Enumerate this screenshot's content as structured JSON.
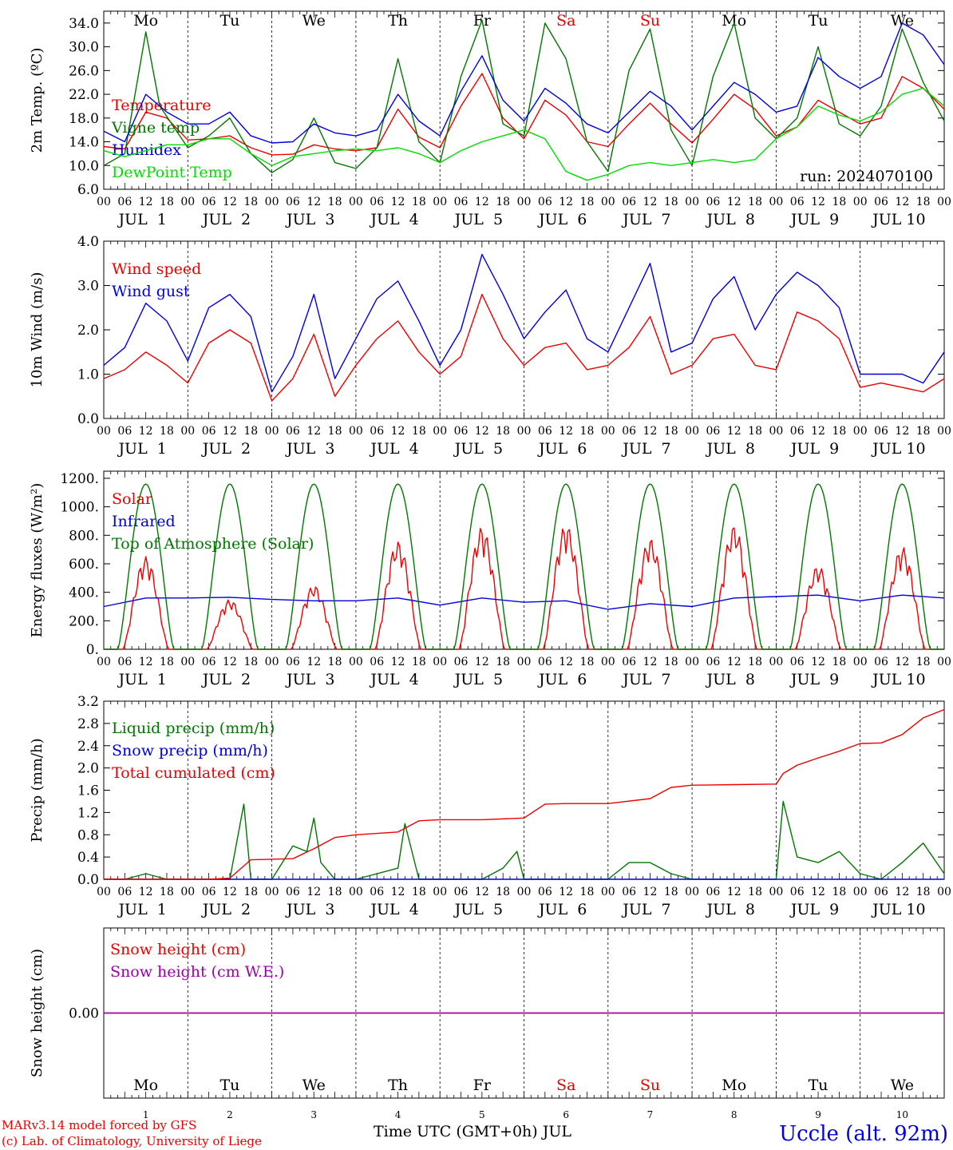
{
  "run_label": "run: 2024070100",
  "footer": {
    "credit_line1": "MARv3.14 model forced by GFS",
    "credit_line2": "(c) Lab. of Climatology, University of Liege",
    "xlabel": "Time UTC (GMT+0h) JUL",
    "station": "Uccle (alt. 92m)"
  },
  "days": [
    {
      "abbr": "Mo",
      "date": "JUL  1",
      "num": "1",
      "weekend": false
    },
    {
      "abbr": "Tu",
      "date": "JUL  2",
      "num": "2",
      "weekend": false
    },
    {
      "abbr": "We",
      "date": "JUL  3",
      "num": "3",
      "weekend": false
    },
    {
      "abbr": "Th",
      "date": "JUL  4",
      "num": "4",
      "weekend": false
    },
    {
      "abbr": "Fr",
      "date": "JUL  5",
      "num": "5",
      "weekend": false
    },
    {
      "abbr": "Sa",
      "date": "JUL  6",
      "num": "6",
      "weekend": true
    },
    {
      "abbr": "Su",
      "date": "JUL  7",
      "num": "7",
      "weekend": true
    },
    {
      "abbr": "Mo",
      "date": "JUL  8",
      "num": "8",
      "weekend": false
    },
    {
      "abbr": "Tu",
      "date": "JUL  9",
      "num": "9",
      "weekend": false
    },
    {
      "abbr": "We",
      "date": "JUL 10",
      "num": "10",
      "weekend": false
    }
  ],
  "hour_ticks": [
    "00",
    "06",
    "12",
    "18"
  ],
  "last_hour_tick": "00",
  "colors": {
    "red": "#ee0000",
    "blue": "#0000dd",
    "green": "#007700",
    "lightgreen": "#00dd00",
    "purple": "#9900aa",
    "weekend": "#ee0000",
    "text": "#000000"
  },
  "chart_data": [
    {
      "id": "temp",
      "type": "line",
      "ylabel": "2m Temp. (ºC)",
      "ylim": [
        6,
        36
      ],
      "yticks": [
        "6.0",
        "10.0",
        "14.0",
        "18.0",
        "22.0",
        "26.0",
        "30.0",
        "34.0"
      ],
      "ytick_values": [
        6,
        10,
        14,
        18,
        22,
        26,
        30,
        34
      ],
      "x_unit": "hours since Jul 1 00 UTC",
      "series": [
        {
          "name": "Temperature",
          "color": "red",
          "x": [
            0,
            6,
            12,
            18,
            24,
            30,
            36,
            42,
            48,
            54,
            60,
            66,
            72,
            78,
            84,
            90,
            96,
            102,
            108,
            114,
            120,
            126,
            132,
            138,
            144,
            150,
            156,
            162,
            168,
            174,
            180,
            186,
            192,
            198,
            204,
            210,
            216,
            222,
            228,
            234,
            240
          ],
          "y": [
            13.2,
            12.8,
            19.0,
            18.0,
            14.3,
            14.5,
            15.0,
            13.0,
            11.8,
            11.9,
            13.5,
            12.8,
            12.5,
            13.0,
            19.5,
            14.8,
            13.0,
            20.0,
            25.5,
            18.0,
            14.5,
            21.0,
            18.5,
            14.0,
            13.2,
            17.0,
            20.5,
            17.0,
            13.8,
            17.8,
            22.0,
            19.5,
            15.0,
            16.5,
            21.0,
            19.0,
            17.0,
            18.0,
            25.0,
            23.0,
            19.5
          ]
        },
        {
          "name": "Vigne temp",
          "color": "green",
          "x": [
            0,
            6,
            12,
            16,
            24,
            30,
            36,
            42,
            48,
            54,
            60,
            66,
            72,
            78,
            84,
            90,
            96,
            102,
            108,
            114,
            120,
            126,
            132,
            138,
            144,
            150,
            156,
            162,
            168,
            174,
            180,
            186,
            192,
            198,
            204,
            210,
            216,
            222,
            228,
            234,
            240
          ],
          "y": [
            10.0,
            12.0,
            32.5,
            20.0,
            13.0,
            15.0,
            18.0,
            12.0,
            8.8,
            11.0,
            18.0,
            10.5,
            9.5,
            13.0,
            28.0,
            14.0,
            10.5,
            25.0,
            34.5,
            17.0,
            15.0,
            34.0,
            28.0,
            14.0,
            9.0,
            26.0,
            33.0,
            16.0,
            10.0,
            25.0,
            34.0,
            18.0,
            14.5,
            18.0,
            30.0,
            17.0,
            15.0,
            20.0,
            33.0,
            24.0,
            17.5
          ]
        },
        {
          "name": "Humidex",
          "color": "blue",
          "x": [
            0,
            6,
            12,
            18,
            24,
            30,
            36,
            42,
            48,
            54,
            60,
            66,
            72,
            78,
            84,
            90,
            96,
            102,
            108,
            114,
            120,
            126,
            132,
            138,
            144,
            150,
            156,
            162,
            168,
            174,
            180,
            186,
            192,
            198,
            204,
            210,
            216,
            222,
            228,
            234,
            240
          ],
          "y": [
            15.8,
            14.0,
            22.0,
            19.0,
            17.0,
            17.0,
            19.0,
            15.0,
            13.8,
            14.0,
            17.0,
            15.5,
            15.0,
            16.0,
            22.0,
            17.5,
            15.0,
            22.5,
            28.5,
            21.0,
            17.5,
            23.0,
            20.5,
            17.0,
            15.5,
            19.0,
            22.5,
            20.0,
            16.0,
            20.0,
            24.0,
            22.0,
            19.0,
            20.0,
            28.2,
            25.0,
            23.0,
            25.0,
            34.0,
            32.0,
            27.0
          ]
        },
        {
          "name": "DewPoint Temp",
          "color": "lightgreen",
          "x": [
            0,
            6,
            12,
            18,
            24,
            30,
            36,
            42,
            48,
            54,
            60,
            66,
            72,
            78,
            84,
            90,
            96,
            102,
            108,
            114,
            120,
            126,
            132,
            138,
            144,
            150,
            156,
            162,
            168,
            174,
            180,
            186,
            192,
            198,
            204,
            210,
            216,
            222,
            228,
            234,
            240
          ],
          "y": [
            12.5,
            11.5,
            12.5,
            13.5,
            13.5,
            14.5,
            14.5,
            12.0,
            10.0,
            11.5,
            12.0,
            12.5,
            12.8,
            12.5,
            13.0,
            12.0,
            10.5,
            12.5,
            14.0,
            15.0,
            16.0,
            14.5,
            9.0,
            7.5,
            8.5,
            10.0,
            10.5,
            10.0,
            10.5,
            11.0,
            10.5,
            11.0,
            14.5,
            16.5,
            20.0,
            18.5,
            17.5,
            19.0,
            22.0,
            23.0,
            20.0
          ]
        }
      ]
    },
    {
      "id": "wind",
      "type": "line",
      "ylabel": "10m Wind (m/s)",
      "ylim": [
        0,
        4
      ],
      "yticks": [
        "0.0",
        "1.0",
        "2.0",
        "3.0",
        "4.0"
      ],
      "ytick_values": [
        0,
        1,
        2,
        3,
        4
      ],
      "x_unit": "hours since Jul 1 00 UTC",
      "series": [
        {
          "name": "Wind speed",
          "color": "red",
          "x": [
            0,
            6,
            12,
            18,
            24,
            30,
            36,
            42,
            48,
            54,
            60,
            66,
            72,
            78,
            84,
            90,
            96,
            102,
            108,
            114,
            120,
            126,
            132,
            138,
            144,
            150,
            156,
            162,
            168,
            174,
            180,
            186,
            192,
            198,
            204,
            210,
            216,
            222,
            228,
            234,
            240
          ],
          "y": [
            0.9,
            1.1,
            1.5,
            1.2,
            0.8,
            1.7,
            2.0,
            1.7,
            0.4,
            0.9,
            1.9,
            0.5,
            1.2,
            1.8,
            2.2,
            1.5,
            1.0,
            1.4,
            2.8,
            1.8,
            1.2,
            1.6,
            1.7,
            1.1,
            1.2,
            1.6,
            2.3,
            1.0,
            1.2,
            1.8,
            1.9,
            1.2,
            1.1,
            2.4,
            2.2,
            1.8,
            0.7,
            0.8,
            0.7,
            0.6,
            0.9
          ]
        },
        {
          "name": "Wind gust",
          "color": "blue",
          "x": [
            0,
            6,
            12,
            18,
            24,
            30,
            36,
            42,
            48,
            54,
            60,
            66,
            72,
            78,
            84,
            90,
            96,
            102,
            108,
            114,
            120,
            126,
            132,
            138,
            144,
            150,
            156,
            162,
            168,
            174,
            180,
            186,
            192,
            198,
            204,
            210,
            216,
            222,
            228,
            234,
            240
          ],
          "y": [
            1.2,
            1.6,
            2.6,
            2.2,
            1.3,
            2.5,
            2.8,
            2.3,
            0.6,
            1.4,
            2.8,
            0.9,
            1.8,
            2.7,
            3.1,
            2.2,
            1.2,
            2.0,
            3.7,
            2.8,
            1.8,
            2.4,
            2.9,
            1.8,
            1.5,
            2.5,
            3.5,
            1.5,
            1.7,
            2.7,
            3.2,
            2.0,
            2.8,
            3.3,
            3.0,
            2.5,
            1.0,
            1.0,
            1.0,
            0.8,
            1.5
          ]
        }
      ]
    },
    {
      "id": "energy",
      "type": "line",
      "ylabel": "Energy fluxes (W/m²)",
      "ylim": [
        0,
        1250
      ],
      "yticks": [
        "0.",
        "200.",
        "400.",
        "600.",
        "800.",
        "1000.",
        "1200."
      ],
      "ytick_values": [
        0,
        200,
        400,
        600,
        800,
        1000,
        1200
      ],
      "x_unit": "hours since Jul 1 00 UTC",
      "series": [
        {
          "name": "Solar",
          "color": "red",
          "daily_peak_hour": 12,
          "daily_peak": [
            650,
            350,
            450,
            760,
            860,
            880,
            780,
            870,
            590,
            720
          ]
        },
        {
          "name": "Infrared",
          "color": "blue",
          "x": [
            0,
            12,
            24,
            36,
            48,
            60,
            72,
            84,
            96,
            108,
            120,
            132,
            144,
            156,
            168,
            180,
            192,
            204,
            216,
            228,
            240
          ],
          "y": [
            300,
            360,
            360,
            365,
            350,
            340,
            340,
            360,
            310,
            360,
            330,
            340,
            280,
            320,
            300,
            360,
            370,
            380,
            340,
            380,
            360
          ]
        },
        {
          "name": "Top of Atmosphere (Solar)",
          "color": "green",
          "daily_peak_hour": 12,
          "daily_peak": [
            1160,
            1160,
            1160,
            1160,
            1160,
            1160,
            1160,
            1160,
            1160,
            1160
          ]
        }
      ]
    },
    {
      "id": "precip",
      "type": "line",
      "ylabel": "Precip (mm/h)",
      "ylim": [
        0,
        3.2
      ],
      "yticks": [
        "0.0",
        "0.4",
        "0.8",
        "1.2",
        "1.6",
        "2.0",
        "2.4",
        "2.8",
        "3.2"
      ],
      "ytick_values": [
        0,
        0.4,
        0.8,
        1.2,
        1.6,
        2.0,
        2.4,
        2.8,
        3.2
      ],
      "x_unit": "hours since Jul 1 00 UTC",
      "series": [
        {
          "name": "Liquid precip (mm/h)",
          "color": "green",
          "x": [
            0,
            6,
            12,
            18,
            24,
            30,
            36,
            40,
            42,
            48,
            54,
            58,
            60,
            62,
            66,
            72,
            84,
            86,
            90,
            96,
            108,
            114,
            118,
            120,
            126,
            144,
            150,
            156,
            162,
            168,
            192,
            194,
            198,
            204,
            210,
            216,
            222,
            228,
            234,
            240
          ],
          "y": [
            0,
            0,
            0.1,
            0,
            0,
            0,
            0,
            1.35,
            0,
            0,
            0.6,
            0.5,
            1.1,
            0.3,
            0,
            0,
            0.2,
            1.0,
            0,
            0,
            0,
            0.2,
            0.5,
            0,
            0,
            0,
            0.3,
            0.3,
            0.1,
            0,
            0,
            1.4,
            0.4,
            0.3,
            0.5,
            0.1,
            0,
            0.3,
            0.65,
            0.1
          ]
        },
        {
          "name": "Snow precip (mm/h)",
          "color": "blue",
          "x": [
            0,
            240
          ],
          "y": [
            0,
            0
          ]
        },
        {
          "name": "Total cumulated (cm)",
          "color": "red",
          "x": [
            0,
            30,
            36,
            42,
            48,
            54,
            60,
            66,
            72,
            84,
            90,
            96,
            108,
            120,
            126,
            132,
            144,
            156,
            162,
            168,
            180,
            192,
            194,
            198,
            204,
            210,
            216,
            222,
            228,
            234,
            240
          ],
          "y": [
            0,
            0,
            0.02,
            0.35,
            0.36,
            0.37,
            0.55,
            0.75,
            0.8,
            0.85,
            1.05,
            1.07,
            1.07,
            1.1,
            1.35,
            1.36,
            1.36,
            1.45,
            1.65,
            1.69,
            1.7,
            1.71,
            1.9,
            2.05,
            2.18,
            2.3,
            2.44,
            2.45,
            2.6,
            2.9,
            3.05
          ]
        }
      ]
    },
    {
      "id": "snow",
      "type": "line",
      "ylabel": "Snow height (cm)",
      "ylim": [
        -1,
        1
      ],
      "yticks": [
        "0.00"
      ],
      "ytick_values": [
        0
      ],
      "x_unit": "hours since Jul 1 00 UTC",
      "series": [
        {
          "name": "Snow height (cm)",
          "color": "red",
          "x": [
            0,
            240
          ],
          "y": [
            0,
            0
          ]
        },
        {
          "name": "Snow height (cm W.E.)",
          "color": "blue",
          "x": [
            0,
            240
          ],
          "y": [
            0,
            0
          ]
        }
      ]
    }
  ]
}
